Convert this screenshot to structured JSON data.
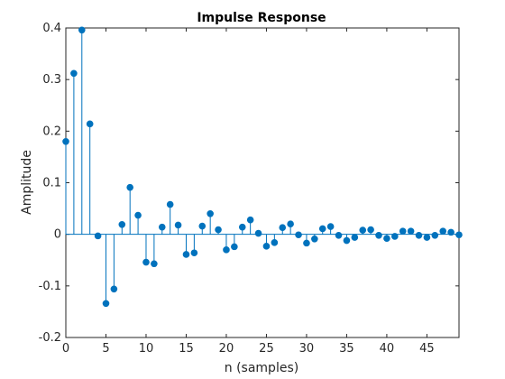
{
  "chart_data": {
    "type": "stem",
    "title": "Impulse Response",
    "xlabel": "n (samples)",
    "ylabel": "Amplitude",
    "xlim": [
      0,
      49
    ],
    "ylim": [
      -0.2,
      0.4
    ],
    "xticks": [
      0,
      5,
      10,
      15,
      20,
      25,
      30,
      35,
      40,
      45
    ],
    "xtick_labels": [
      "0",
      "5",
      "10",
      "15",
      "20",
      "25",
      "30",
      "35",
      "40",
      "45"
    ],
    "yticks": [
      -0.2,
      -0.1,
      0,
      0.1,
      0.2,
      0.3,
      0.4
    ],
    "ytick_labels": [
      "-0.2",
      "-0.1",
      "0",
      "0.1",
      "0.2",
      "0.3",
      "0.4"
    ],
    "grid": false,
    "box": true,
    "marker_color": "#0072BD",
    "series": [
      {
        "x": [
          0,
          1,
          2,
          3,
          4,
          5,
          6,
          7,
          8,
          9,
          10,
          11,
          12,
          13,
          14,
          15,
          16,
          17,
          18,
          19,
          20,
          21,
          22,
          23,
          24,
          25,
          26,
          27,
          28,
          29,
          30,
          31,
          32,
          33,
          34,
          35,
          36,
          37,
          38,
          39,
          40,
          41,
          42,
          43,
          44,
          45,
          46,
          47,
          48,
          49
        ],
        "values": [
          0.18,
          0.312,
          0.396,
          0.214,
          -0.003,
          -0.134,
          -0.106,
          0.019,
          0.091,
          0.037,
          -0.054,
          -0.057,
          0.014,
          0.058,
          0.018,
          -0.039,
          -0.036,
          0.016,
          0.04,
          0.009,
          -0.03,
          -0.024,
          0.014,
          0.028,
          0.002,
          -0.023,
          -0.016,
          0.013,
          0.02,
          -0.001,
          -0.017,
          -0.009,
          0.011,
          0.015,
          -0.002,
          -0.012,
          -0.006,
          0.008,
          0.009,
          -0.002,
          -0.008,
          -0.004,
          0.006,
          0.006,
          -0.002,
          -0.006,
          -0.002,
          0.006,
          0.004,
          -0.001
        ]
      }
    ]
  }
}
